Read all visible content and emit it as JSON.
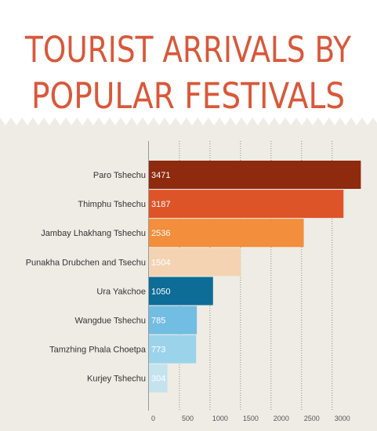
{
  "header": {
    "title_line1": "TOURIST ARRIVALS BY",
    "title_line2": "POPULAR FESTIVALS"
  },
  "colors": {
    "title": "#d9583a",
    "header_bg": "#ffffff",
    "page_bg": "#efece6"
  },
  "chart_data": {
    "type": "bar",
    "orientation": "horizontal",
    "title": "TOURIST ARRIVALS BY POPULAR FESTIVALS",
    "categories": [
      "Paro Tshechu",
      "Thimphu Tshechu",
      "Jambay Lhakhang Tshechu",
      "Punakha Drubchen and Tsechu",
      "Ura Yakchoe",
      "Wangdue Tshechu",
      "Tamzhing Phala Choetpa",
      "Kurjey Tshechu"
    ],
    "values": [
      3471,
      3187,
      2536,
      1504,
      1050,
      785,
      773,
      304
    ],
    "labels": [
      "3471",
      "3187",
      "2536",
      "1504",
      "1050",
      "785",
      "773",
      "304"
    ],
    "bar_colors": [
      "#8e2a0e",
      "#de5429",
      "#f28e3c",
      "#f4d3b3",
      "#0e6d97",
      "#72bde2",
      "#9bd3ea",
      "#c4e3ef"
    ],
    "x_ticks": [
      0,
      500,
      1000,
      1500,
      2000,
      2500,
      3000
    ],
    "x_tick_labels": [
      "0",
      "500",
      "1000",
      "1500",
      "2000",
      "2500",
      "3000"
    ],
    "xlim": [
      0,
      3500
    ],
    "grid": true,
    "xlabel": "",
    "ylabel": ""
  }
}
